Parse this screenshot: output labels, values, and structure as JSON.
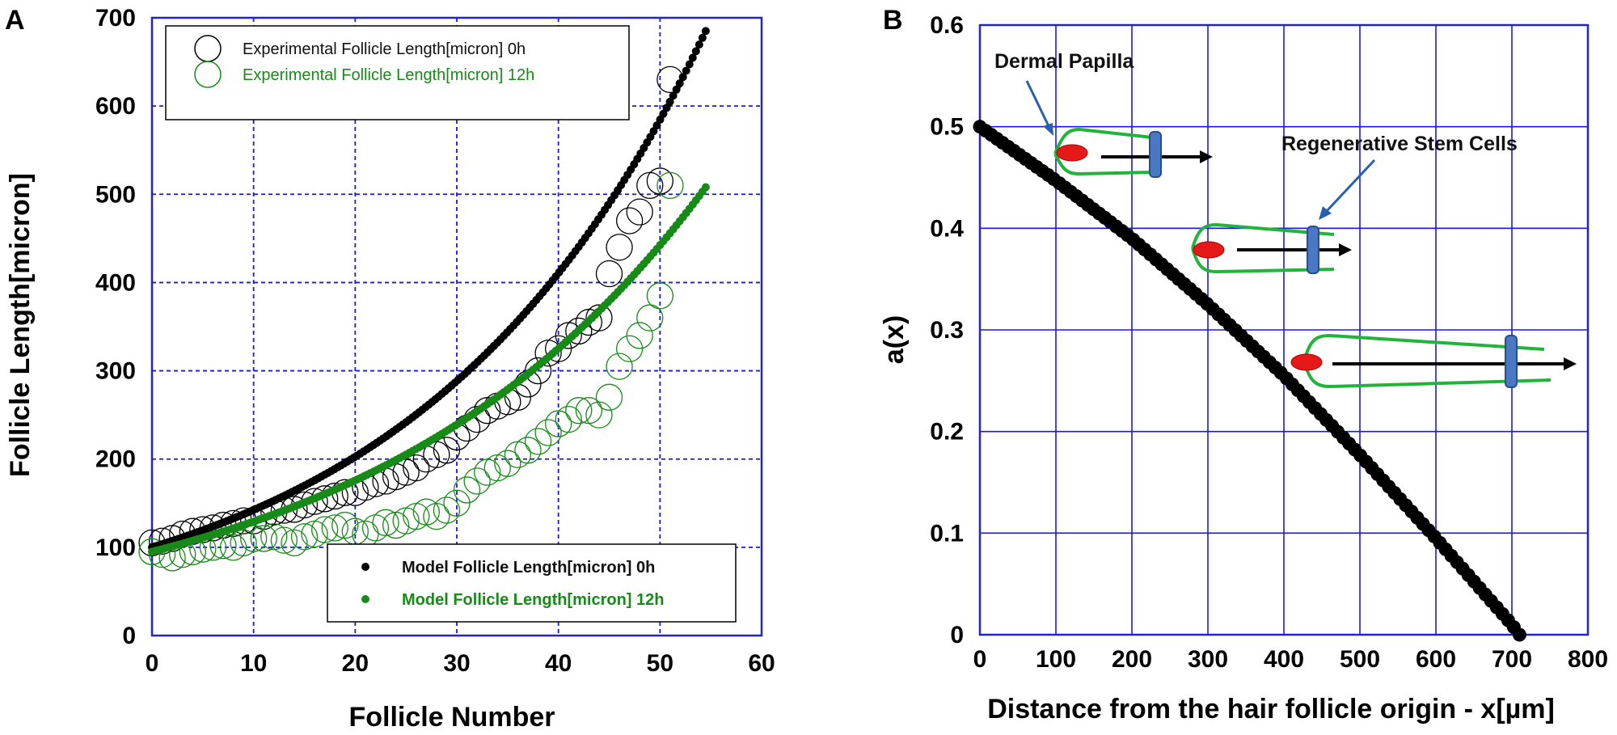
{
  "panels": {
    "a_label": "A",
    "b_label": "B"
  },
  "colors": {
    "black_series": "#000000",
    "green_series": "#178a17",
    "grid": "#1a1ad0",
    "frame": "#2323c8",
    "dermal_papilla": "#e61919",
    "follicle_outline": "#22b33a",
    "stem_cell": "#4a78c4",
    "arrow_annotation": "#2a5fb0"
  },
  "chart_data": [
    {
      "type": "scatter",
      "xlabel": "Follicle Number",
      "ylabel": "Follicle Length[micron]",
      "xlim": [
        0,
        60
      ],
      "ylim": [
        0,
        700
      ],
      "x_ticks": [
        "0",
        "10",
        "20",
        "30",
        "40",
        "50",
        "60"
      ],
      "y_ticks": [
        "0",
        "100",
        "200",
        "300",
        "400",
        "500",
        "600",
        "700"
      ],
      "grid": true,
      "legends": [
        {
          "placement": "top-left",
          "entries": [
            {
              "label": "Experimental Follicle Length[micron] 0h",
              "marker": "open-circle",
              "color": "#000000"
            },
            {
              "label": "Experimental Follicle Length[micron] 12h",
              "marker": "open-circle",
              "color": "#178a17"
            }
          ]
        },
        {
          "placement": "bottom-right",
          "entries": [
            {
              "label": "Model Follicle Length[micron] 0h",
              "marker": "dot",
              "color": "#000000"
            },
            {
              "label": "Model Follicle Length[micron] 12h",
              "marker": "dot",
              "color": "#178a17"
            }
          ]
        }
      ],
      "series": [
        {
          "name": "Experimental Follicle Length[micron] 0h",
          "style": "open-circle",
          "color": "#000000",
          "x": [
            0,
            1,
            2,
            3,
            4,
            5,
            6,
            7,
            8,
            9,
            10,
            11,
            12,
            13,
            14,
            15,
            16,
            17,
            18,
            19,
            20,
            21,
            22,
            23,
            24,
            25,
            26,
            27,
            28,
            29,
            30,
            31,
            32,
            33,
            34,
            35,
            36,
            37,
            38,
            39,
            40,
            41,
            42,
            43,
            44,
            45,
            46,
            47,
            48,
            49,
            50,
            51
          ],
          "y": [
            105,
            107,
            110,
            115,
            118,
            120,
            122,
            125,
            127,
            130,
            130,
            135,
            140,
            142,
            143,
            148,
            152,
            155,
            158,
            162,
            162,
            168,
            172,
            175,
            180,
            185,
            190,
            200,
            205,
            210,
            225,
            235,
            245,
            255,
            260,
            265,
            270,
            285,
            300,
            320,
            325,
            340,
            345,
            355,
            360,
            410,
            440,
            470,
            480,
            510,
            515,
            630
          ]
        },
        {
          "name": "Experimental Follicle Length[micron] 12h",
          "style": "open-circle",
          "color": "#178a17",
          "x": [
            0,
            1,
            2,
            3,
            4,
            5,
            6,
            7,
            8,
            9,
            10,
            11,
            12,
            13,
            14,
            15,
            16,
            17,
            18,
            19,
            20,
            21,
            22,
            23,
            24,
            25,
            26,
            27,
            28,
            29,
            30,
            31,
            32,
            33,
            34,
            35,
            36,
            37,
            38,
            39,
            40,
            41,
            42,
            43,
            44,
            45,
            46,
            47,
            48,
            49,
            50,
            51
          ],
          "y": [
            95,
            92,
            88,
            92,
            95,
            98,
            100,
            102,
            100,
            105,
            110,
            110,
            112,
            108,
            105,
            112,
            115,
            120,
            122,
            125,
            118,
            115,
            122,
            128,
            125,
            130,
            135,
            140,
            135,
            142,
            150,
            165,
            175,
            185,
            190,
            195,
            205,
            210,
            220,
            230,
            240,
            245,
            255,
            255,
            250,
            270,
            305,
            325,
            340,
            360,
            385,
            510
          ]
        },
        {
          "name": "Model Follicle Length[micron] 0h",
          "style": "dots",
          "color": "#000000",
          "model": "exponential",
          "x_start": 0,
          "x_end": 54.5,
          "y_start": 100,
          "y_end": 685
        },
        {
          "name": "Model Follicle Length[micron] 12h",
          "style": "dots",
          "color": "#178a17",
          "model": "exponential",
          "x_start": 0,
          "x_end": 54.5,
          "y_start": 95,
          "y_end": 508
        }
      ]
    },
    {
      "type": "line",
      "xlabel": "Distance from the hair follicle origin - x[µm]",
      "ylabel": "a(x)",
      "xlim": [
        0,
        800
      ],
      "ylim": [
        0,
        0.6
      ],
      "x_ticks": [
        "0",
        "100",
        "200",
        "300",
        "400",
        "500",
        "600",
        "700",
        "800"
      ],
      "y_ticks": [
        "0",
        "0.1",
        "0.2",
        "0.3",
        "0.4",
        "0.5",
        "0.6"
      ],
      "grid": true,
      "series": [
        {
          "style": "thick-dots",
          "color": "#000000",
          "x": [
            0,
            100,
            200,
            300,
            400,
            500,
            600,
            700,
            710
          ],
          "y": [
            0.5,
            0.447,
            0.39,
            0.325,
            0.255,
            0.177,
            0.095,
            0.01,
            0
          ]
        }
      ],
      "annotations": [
        {
          "text": "Dermal Papilla"
        },
        {
          "text": "Regenerative Stem Cells"
        }
      ]
    }
  ]
}
